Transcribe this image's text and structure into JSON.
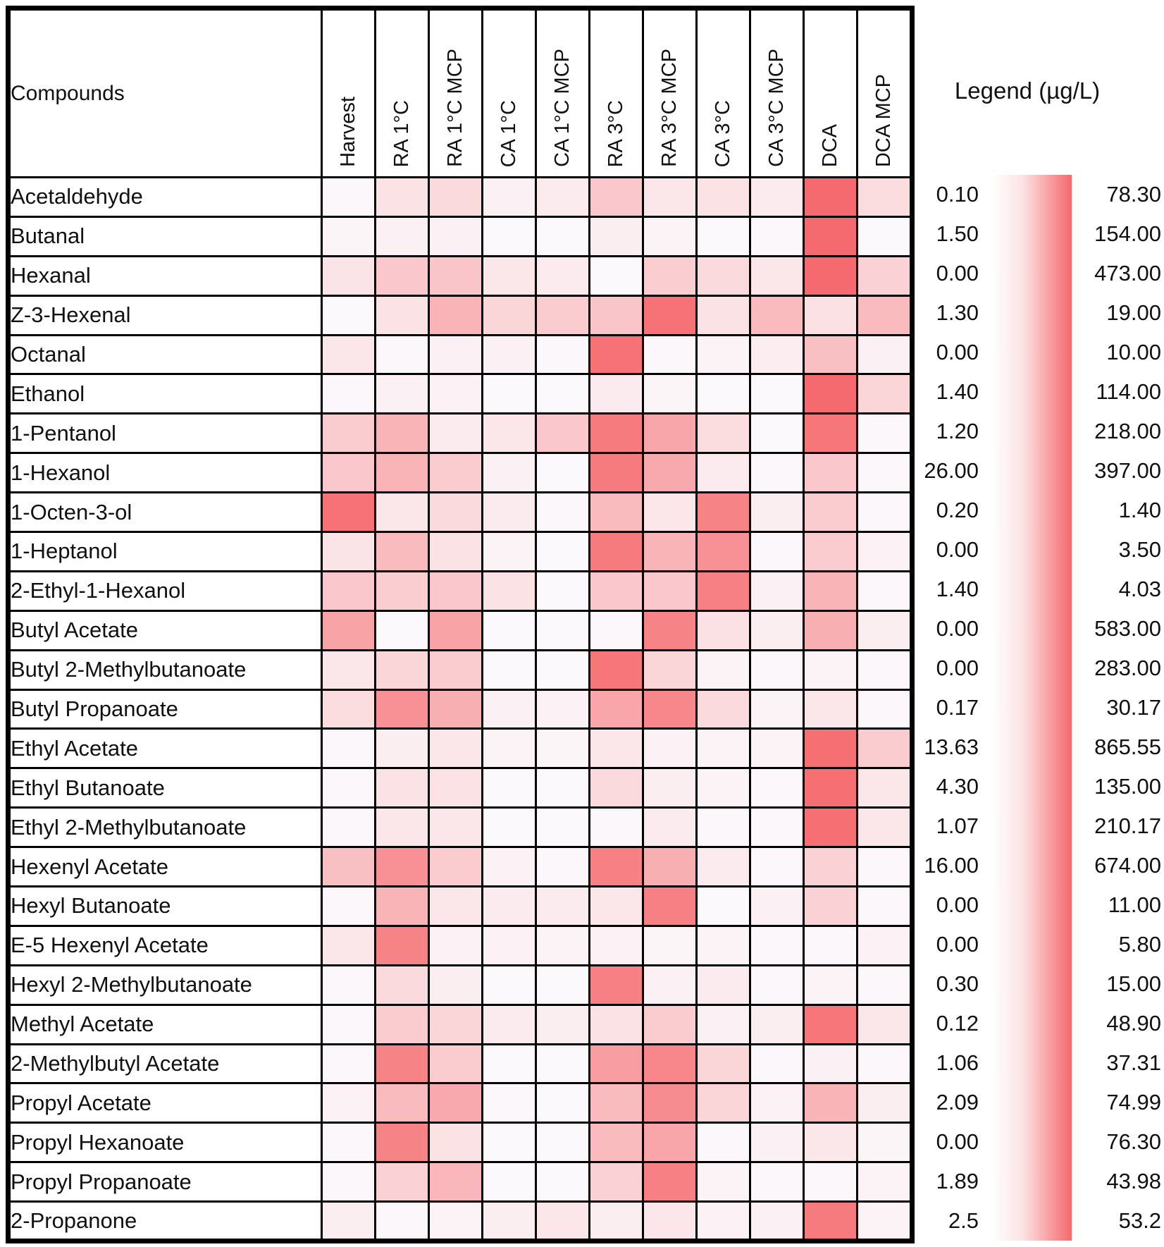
{
  "chart_data": {
    "type": "heatmap",
    "title": "Legend (µg/L)",
    "corner_label": "Compounds",
    "legend_unit": "µg/L",
    "colorscale": {
      "min_color": "#FCFCFF",
      "max_color": "#F45054",
      "border_color": "#000000"
    },
    "columns": [
      "Harvest",
      "RA 1°C",
      "RA 1°C MCP",
      "CA 1°C",
      "CA 1°C MCP",
      "RA 3°C",
      "RA 3°C MCP",
      "CA 3°C",
      "CA 3°C MCP",
      "DCA",
      "DCA MCP"
    ],
    "rows": [
      {
        "compound": "Acetaldehyde",
        "min": "0.10",
        "max": "78.30",
        "intensities": [
          0.03,
          0.15,
          0.2,
          0.07,
          0.1,
          0.3,
          0.12,
          0.15,
          0.1,
          0.85,
          0.18
        ]
      },
      {
        "compound": "Butanal",
        "min": "1.50",
        "max": "154.00",
        "intensities": [
          0.04,
          0.07,
          0.07,
          0.02,
          0.02,
          0.08,
          0.05,
          0.02,
          0.03,
          0.85,
          0.02
        ]
      },
      {
        "compound": "Hexanal",
        "min": "0.00",
        "max": "473.00",
        "intensities": [
          0.14,
          0.3,
          0.32,
          0.13,
          0.1,
          0.02,
          0.27,
          0.2,
          0.13,
          0.85,
          0.25
        ]
      },
      {
        "compound": "Z-3-Hexenal",
        "min": "1.30",
        "max": "19.00",
        "intensities": [
          0.02,
          0.15,
          0.42,
          0.22,
          0.28,
          0.32,
          0.8,
          0.15,
          0.38,
          0.16,
          0.38
        ]
      },
      {
        "compound": "Octanal",
        "min": "0.00",
        "max": "10.00",
        "intensities": [
          0.13,
          0.03,
          0.07,
          0.07,
          0.03,
          0.8,
          0.03,
          0.05,
          0.09,
          0.35,
          0.07
        ]
      },
      {
        "compound": "Ethanol",
        "min": "1.40",
        "max": "114.00",
        "intensities": [
          0.03,
          0.07,
          0.06,
          0.02,
          0.02,
          0.1,
          0.04,
          0.02,
          0.02,
          0.85,
          0.22
        ]
      },
      {
        "compound": "1-Pentanol",
        "min": "1.20",
        "max": "218.00",
        "intensities": [
          0.28,
          0.42,
          0.1,
          0.13,
          0.3,
          0.75,
          0.5,
          0.18,
          0.02,
          0.78,
          0.03
        ]
      },
      {
        "compound": "1-Hexanol",
        "min": "26.00",
        "max": "397.00",
        "intensities": [
          0.3,
          0.42,
          0.28,
          0.07,
          0.02,
          0.75,
          0.48,
          0.1,
          0.03,
          0.3,
          0.03
        ]
      },
      {
        "compound": "1-Octen-3-ol",
        "min": "0.20",
        "max": "1.40",
        "intensities": [
          0.8,
          0.13,
          0.2,
          0.1,
          0.03,
          0.38,
          0.13,
          0.7,
          0.08,
          0.28,
          0.03
        ]
      },
      {
        "compound": "1-Heptanol",
        "min": "0.00",
        "max": "3.50",
        "intensities": [
          0.14,
          0.38,
          0.15,
          0.05,
          0.02,
          0.75,
          0.42,
          0.62,
          0.03,
          0.28,
          0.06
        ]
      },
      {
        "compound": "2-Ethyl-1-Hexanol",
        "min": "1.40",
        "max": "4.03",
        "intensities": [
          0.3,
          0.27,
          0.3,
          0.15,
          0.02,
          0.3,
          0.3,
          0.72,
          0.07,
          0.42,
          0.03
        ]
      },
      {
        "compound": "Butyl Acetate",
        "min": "0.00",
        "max": "583.00",
        "intensities": [
          0.52,
          0.02,
          0.52,
          0.02,
          0.02,
          0.03,
          0.7,
          0.16,
          0.08,
          0.45,
          0.08
        ]
      },
      {
        "compound": "Butyl 2-Methylbutanoate",
        "min": "0.00",
        "max": "283.00",
        "intensities": [
          0.13,
          0.22,
          0.28,
          0.02,
          0.02,
          0.78,
          0.22,
          0.05,
          0.03,
          0.05,
          0.03
        ]
      },
      {
        "compound": "Butyl Propanoate",
        "min": "0.17",
        "max": "30.17",
        "intensities": [
          0.18,
          0.62,
          0.45,
          0.07,
          0.06,
          0.5,
          0.68,
          0.2,
          0.05,
          0.13,
          0.03
        ]
      },
      {
        "compound": "Ethyl Acetate",
        "min": "13.63",
        "max": "865.55",
        "intensities": [
          0.03,
          0.08,
          0.13,
          0.05,
          0.04,
          0.12,
          0.06,
          0.05,
          0.05,
          0.82,
          0.28
        ]
      },
      {
        "compound": "Ethyl Butanoate",
        "min": "4.30",
        "max": "135.00",
        "intensities": [
          0.03,
          0.15,
          0.15,
          0.02,
          0.02,
          0.2,
          0.08,
          0.05,
          0.03,
          0.82,
          0.12
        ]
      },
      {
        "compound": "Ethyl 2-Methylbutanoate",
        "min": "1.07",
        "max": "210.17",
        "intensities": [
          0.03,
          0.13,
          0.13,
          0.02,
          0.02,
          0.03,
          0.1,
          0.03,
          0.03,
          0.82,
          0.12
        ]
      },
      {
        "compound": "Hexenyl Acetate",
        "min": "16.00",
        "max": "674.00",
        "intensities": [
          0.35,
          0.62,
          0.28,
          0.06,
          0.03,
          0.72,
          0.45,
          0.1,
          0.03,
          0.25,
          0.03
        ]
      },
      {
        "compound": "Hexyl Butanoate",
        "min": "0.00",
        "max": "11.00",
        "intensities": [
          0.03,
          0.42,
          0.13,
          0.1,
          0.1,
          0.13,
          0.72,
          0.02,
          0.07,
          0.25,
          0.03
        ]
      },
      {
        "compound": "E-5 Hexenyl Acetate",
        "min": "0.00",
        "max": "5.80",
        "intensities": [
          0.12,
          0.7,
          0.06,
          0.06,
          0.05,
          0.06,
          0.04,
          0.05,
          0.03,
          0.03,
          0.06
        ]
      },
      {
        "compound": "Hexyl 2-Methylbutanoate",
        "min": "0.30",
        "max": "15.00",
        "intensities": [
          0.03,
          0.2,
          0.08,
          0.02,
          0.02,
          0.72,
          0.07,
          0.1,
          0.03,
          0.05,
          0.03
        ]
      },
      {
        "compound": "Methyl Acetate",
        "min": "0.12",
        "max": "48.90",
        "intensities": [
          0.03,
          0.28,
          0.22,
          0.1,
          0.08,
          0.15,
          0.28,
          0.07,
          0.08,
          0.78,
          0.12
        ]
      },
      {
        "compound": "2-Methylbutyl Acetate",
        "min": "1.06",
        "max": "37.31",
        "intensities": [
          0.03,
          0.7,
          0.28,
          0.02,
          0.02,
          0.55,
          0.68,
          0.22,
          0.03,
          0.07,
          0.03
        ]
      },
      {
        "compound": "Propyl Acetate",
        "min": "2.09",
        "max": "74.99",
        "intensities": [
          0.06,
          0.38,
          0.48,
          0.03,
          0.02,
          0.38,
          0.65,
          0.22,
          0.06,
          0.42,
          0.08
        ]
      },
      {
        "compound": "Propyl Hexanoate",
        "min": "0.00",
        "max": "76.30",
        "intensities": [
          0.03,
          0.7,
          0.15,
          0.02,
          0.02,
          0.38,
          0.5,
          0.03,
          0.07,
          0.12,
          0.04
        ]
      },
      {
        "compound": "Propyl Propanoate",
        "min": "1.89",
        "max": "43.98",
        "intensities": [
          0.03,
          0.25,
          0.4,
          0.02,
          0.02,
          0.25,
          0.72,
          0.05,
          0.03,
          0.03,
          0.05
        ]
      },
      {
        "compound": "2-Propanone",
        "min": "2.5",
        "max": "53.2",
        "intensities": [
          0.08,
          0.03,
          0.05,
          0.08,
          0.12,
          0.08,
          0.13,
          0.06,
          0.07,
          0.75,
          0.05
        ]
      }
    ]
  }
}
